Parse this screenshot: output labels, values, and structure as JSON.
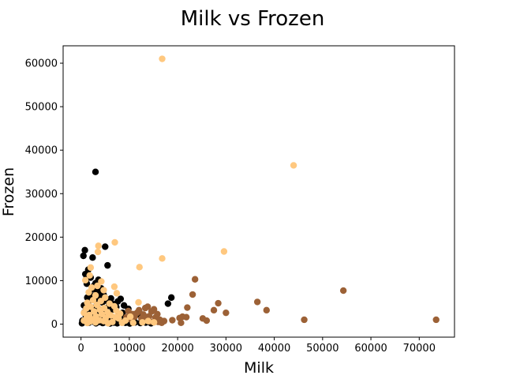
{
  "chart_data": {
    "type": "scatter",
    "title": "Milk vs Frozen",
    "xlabel": "Milk",
    "ylabel": "Frozen",
    "xlim": [
      -3700,
      77300
    ],
    "ylim": [
      -3000,
      64000
    ],
    "xticks": [
      0,
      10000,
      20000,
      30000,
      40000,
      50000,
      60000,
      70000
    ],
    "yticks": [
      0,
      10000,
      20000,
      30000,
      40000,
      50000,
      60000
    ],
    "grid": false,
    "legend": "none",
    "series": [
      {
        "color": "#000000",
        "points": [
          [
            3000,
            35000
          ],
          [
            800,
            17000
          ],
          [
            500,
            15700
          ],
          [
            2400,
            15300
          ],
          [
            5000,
            17800
          ],
          [
            5500,
            13500
          ],
          [
            1500,
            12500
          ],
          [
            900,
            11500
          ],
          [
            2000,
            10700
          ],
          [
            3600,
            10200
          ],
          [
            1200,
            9300
          ],
          [
            2600,
            8700
          ],
          [
            4200,
            8200
          ],
          [
            3100,
            7700
          ],
          [
            1800,
            7200
          ],
          [
            3900,
            6900
          ],
          [
            2300,
            6400
          ],
          [
            8200,
            5800
          ],
          [
            7600,
            5200
          ],
          [
            6200,
            5900
          ],
          [
            5200,
            5400
          ],
          [
            4400,
            5000
          ],
          [
            2900,
            5600
          ],
          [
            1400,
            4900
          ],
          [
            3300,
            4500
          ],
          [
            5800,
            4200
          ],
          [
            7100,
            4600
          ],
          [
            18700,
            6100
          ],
          [
            18000,
            4700
          ],
          [
            12000,
            3000
          ],
          [
            9800,
            3500
          ],
          [
            8600,
            2600
          ],
          [
            6600,
            3400
          ],
          [
            4900,
            3100
          ],
          [
            3500,
            2800
          ],
          [
            1700,
            3400
          ],
          [
            700,
            2700
          ],
          [
            2600,
            2200
          ],
          [
            4300,
            1900
          ],
          [
            6100,
            2100
          ],
          [
            7800,
            1800
          ],
          [
            9100,
            1500
          ],
          [
            10600,
            1300
          ],
          [
            11700,
            2200
          ],
          [
            13200,
            1700
          ],
          [
            1200,
            1600
          ],
          [
            2200,
            1200
          ],
          [
            3400,
            1000
          ],
          [
            4600,
            1300
          ],
          [
            5700,
            900
          ],
          [
            6800,
            1100
          ],
          [
            7900,
            700
          ],
          [
            8800,
            900
          ],
          [
            9700,
            600
          ],
          [
            10900,
            800
          ],
          [
            300,
            800
          ],
          [
            900,
            500
          ],
          [
            1600,
            300
          ],
          [
            2400,
            600
          ],
          [
            3100,
            200
          ],
          [
            3800,
            500
          ],
          [
            4500,
            250
          ],
          [
            5300,
            400
          ],
          [
            6000,
            150
          ],
          [
            6800,
            350
          ],
          [
            7500,
            200
          ],
          [
            8300,
            450
          ],
          [
            9200,
            300
          ],
          [
            10100,
            150
          ],
          [
            11200,
            400
          ],
          [
            12300,
            250
          ],
          [
            13400,
            350
          ],
          [
            14500,
            200
          ],
          [
            200,
            200
          ],
          [
            1000,
            1900
          ],
          [
            2000,
            2500
          ],
          [
            2800,
            3700
          ],
          [
            4000,
            3300
          ],
          [
            5100,
            2500
          ],
          [
            6400,
            4700
          ],
          [
            7300,
            3900
          ],
          [
            8900,
            4300
          ],
          [
            600,
            4300
          ],
          [
            1300,
            6100
          ],
          [
            2300,
            8100
          ],
          [
            3700,
            5800
          ],
          [
            4700,
            6700
          ],
          [
            3000,
            9400
          ],
          [
            1100,
            10400
          ],
          [
            4100,
            7400
          ]
        ]
      },
      {
        "color": "#9c6136",
        "points": [
          [
            73500,
            1000
          ],
          [
            54300,
            7700
          ],
          [
            46200,
            1000
          ],
          [
            38400,
            3200
          ],
          [
            36500,
            5100
          ],
          [
            30000,
            2600
          ],
          [
            28400,
            4800
          ],
          [
            27500,
            3200
          ],
          [
            26000,
            800
          ],
          [
            25200,
            1300
          ],
          [
            23600,
            10300
          ],
          [
            23100,
            6800
          ],
          [
            22000,
            3800
          ],
          [
            21800,
            1600
          ],
          [
            21000,
            1700
          ],
          [
            20700,
            300
          ],
          [
            20400,
            1400
          ],
          [
            17200,
            700
          ],
          [
            16700,
            300
          ],
          [
            16300,
            1000
          ],
          [
            15800,
            2300
          ],
          [
            15100,
            3400
          ],
          [
            14600,
            2900
          ],
          [
            14100,
            1800
          ],
          [
            13800,
            4000
          ],
          [
            13300,
            3700
          ],
          [
            12900,
            2200
          ],
          [
            12500,
            1300
          ],
          [
            12000,
            3200
          ],
          [
            11600,
            2600
          ],
          [
            11100,
            1700
          ],
          [
            10700,
            2300
          ],
          [
            10300,
            1100
          ],
          [
            9800,
            3000
          ],
          [
            9400,
            1600
          ],
          [
            16000,
            500
          ],
          [
            13700,
            1200
          ],
          [
            18900,
            900
          ],
          [
            15400,
            1500
          ],
          [
            14300,
            600
          ]
        ]
      },
      {
        "color": "#ffc87f",
        "points": [
          [
            16800,
            61000
          ],
          [
            44000,
            36500
          ],
          [
            7000,
            18800
          ],
          [
            3600,
            18000
          ],
          [
            3500,
            16600
          ],
          [
            29600,
            16700
          ],
          [
            16800,
            15100
          ],
          [
            12100,
            13100
          ],
          [
            2000,
            13000
          ],
          [
            1800,
            11200
          ],
          [
            4200,
            9800
          ],
          [
            900,
            10100
          ],
          [
            3400,
            8800
          ],
          [
            6900,
            8600
          ],
          [
            2200,
            8400
          ],
          [
            4700,
            7800
          ],
          [
            1600,
            7300
          ],
          [
            7400,
            7100
          ],
          [
            3000,
            6600
          ],
          [
            5000,
            6100
          ],
          [
            2500,
            5500
          ],
          [
            4100,
            5300
          ],
          [
            1300,
            4900
          ],
          [
            11900,
            5000
          ],
          [
            5900,
            4700
          ],
          [
            3300,
            4400
          ],
          [
            6900,
            4100
          ],
          [
            2000,
            4000
          ],
          [
            4800,
            3700
          ],
          [
            1100,
            3600
          ],
          [
            3900,
            3300
          ],
          [
            7300,
            3100
          ],
          [
            2700,
            2900
          ],
          [
            5500,
            2700
          ],
          [
            600,
            2600
          ],
          [
            8100,
            2400
          ],
          [
            4300,
            2300
          ],
          [
            1700,
            2100
          ],
          [
            6200,
            2000
          ],
          [
            3100,
            1800
          ],
          [
            10200,
            1700
          ],
          [
            1200,
            1500
          ],
          [
            5100,
            1400
          ],
          [
            7800,
            1300
          ],
          [
            2300,
            1100
          ],
          [
            3800,
            900
          ],
          [
            600,
            800
          ],
          [
            9200,
            800
          ],
          [
            4700,
            700
          ],
          [
            1900,
            600
          ],
          [
            6500,
            500
          ],
          [
            3000,
            400
          ],
          [
            12700,
            400
          ],
          [
            8500,
            300
          ],
          [
            1300,
            250
          ],
          [
            5600,
            200
          ],
          [
            10800,
            300
          ],
          [
            15100,
            400
          ],
          [
            13900,
            700
          ],
          [
            7200,
            1600
          ]
        ]
      }
    ]
  }
}
